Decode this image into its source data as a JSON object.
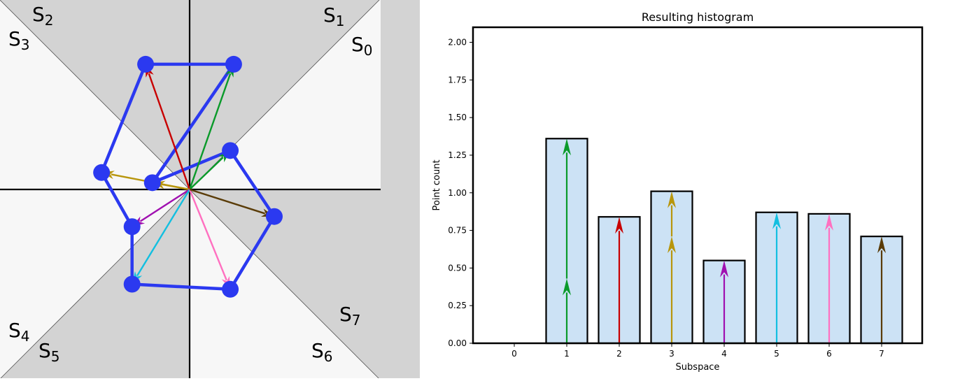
{
  "sector_diagram": {
    "labels": [
      {
        "base": "S",
        "sub": "0"
      },
      {
        "base": "S",
        "sub": "1"
      },
      {
        "base": "S",
        "sub": "2"
      },
      {
        "base": "S",
        "sub": "3"
      },
      {
        "base": "S",
        "sub": "4"
      },
      {
        "base": "S",
        "sub": "5"
      },
      {
        "base": "S",
        "sub": "6"
      },
      {
        "base": "S",
        "sub": "7"
      }
    ],
    "colors": {
      "polygon": "#2b39f0",
      "shaded_sector": "#d3d3d3",
      "light_sector": "#f7f7f7"
    },
    "points": [
      {
        "x": 0.24,
        "y": 0.23,
        "color": "#0a9a2a"
      },
      {
        "x": 0.26,
        "y": 0.74,
        "color": "#0a9a2a"
      },
      {
        "x": -0.26,
        "y": 0.74,
        "color": "#c80000"
      },
      {
        "x": -0.52,
        "y": 0.1,
        "color": "#b8960c"
      },
      {
        "x": -0.22,
        "y": 0.04,
        "color": "#b8960c"
      },
      {
        "x": -0.34,
        "y": -0.22,
        "color": "#a010b0"
      },
      {
        "x": -0.34,
        "y": -0.56,
        "color": "#12bfe0"
      },
      {
        "x": 0.24,
        "y": -0.59,
        "color": "#ff70c0"
      },
      {
        "x": 0.5,
        "y": -0.16,
        "color": "#5a3c08"
      }
    ],
    "polygon_order": [
      1,
      2,
      3,
      5,
      6,
      7,
      8,
      0,
      4
    ]
  },
  "chart_data": {
    "type": "bar",
    "title": "Resulting histogram",
    "xlabel": "Subspace",
    "ylabel": "Point count",
    "categories": [
      "0",
      "1",
      "2",
      "3",
      "4",
      "5",
      "6",
      "7"
    ],
    "values": [
      0,
      1.36,
      0.84,
      1.01,
      0.55,
      0.87,
      0.86,
      0.71
    ],
    "ylim": [
      0,
      2.1
    ],
    "yticks": [
      "0.00",
      "0.25",
      "0.50",
      "0.75",
      "1.00",
      "1.25",
      "1.50",
      "1.75",
      "2.00"
    ],
    "bar_fill": "#cce2f5",
    "arrows": [
      {
        "category": 1,
        "from": 0,
        "to": 0.43,
        "color": "#0a9a2a"
      },
      {
        "category": 1,
        "from": 0.43,
        "to": 1.36,
        "color": "#0a9a2a"
      },
      {
        "category": 2,
        "from": 0,
        "to": 0.84,
        "color": "#c80000"
      },
      {
        "category": 3,
        "from": 0,
        "to": 0.71,
        "color": "#b8960c"
      },
      {
        "category": 3,
        "from": 0.71,
        "to": 1.01,
        "color": "#b8960c"
      },
      {
        "category": 4,
        "from": 0,
        "to": 0.55,
        "color": "#a010b0"
      },
      {
        "category": 5,
        "from": 0,
        "to": 0.87,
        "color": "#12bfe0"
      },
      {
        "category": 6,
        "from": 0,
        "to": 0.86,
        "color": "#ff70c0"
      },
      {
        "category": 7,
        "from": 0,
        "to": 0.71,
        "color": "#5a3c08"
      }
    ]
  }
}
